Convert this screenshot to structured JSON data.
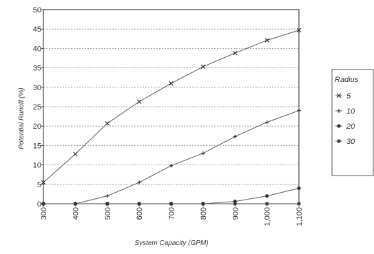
{
  "chart_data": {
    "type": "line",
    "title": "",
    "xlabel": "System Capacity (GPM)",
    "ylabel": "Potential Runoff (%)",
    "categories": [
      "300",
      "400",
      "500",
      "600",
      "700",
      "800",
      "900",
      "1,000",
      "1,100"
    ],
    "ylim": [
      0,
      50
    ],
    "yticks": [
      "0",
      "5",
      "10",
      "15",
      "20",
      "25",
      "30",
      "35",
      "40",
      "45",
      "50"
    ],
    "grid": "horizontal dotted",
    "legend": {
      "title": "Radius",
      "placement": "right"
    },
    "series": [
      {
        "name": "5",
        "marker": "cross",
        "values": [
          5.5,
          12.8,
          20.7,
          26.3,
          31.0,
          35.3,
          38.8,
          42.1,
          44.7
        ]
      },
      {
        "name": "10",
        "marker": "plus",
        "values": [
          0,
          0,
          2.0,
          5.5,
          9.8,
          13.0,
          17.3,
          21.0,
          24.0
        ]
      },
      {
        "name": "20",
        "marker": "dot",
        "values": [
          0,
          0,
          0,
          0,
          0,
          0,
          0.6,
          2.0,
          4.0
        ]
      },
      {
        "name": "30",
        "marker": "star",
        "values": [
          0,
          0,
          0,
          0,
          0,
          0,
          0,
          0,
          0
        ]
      }
    ]
  }
}
